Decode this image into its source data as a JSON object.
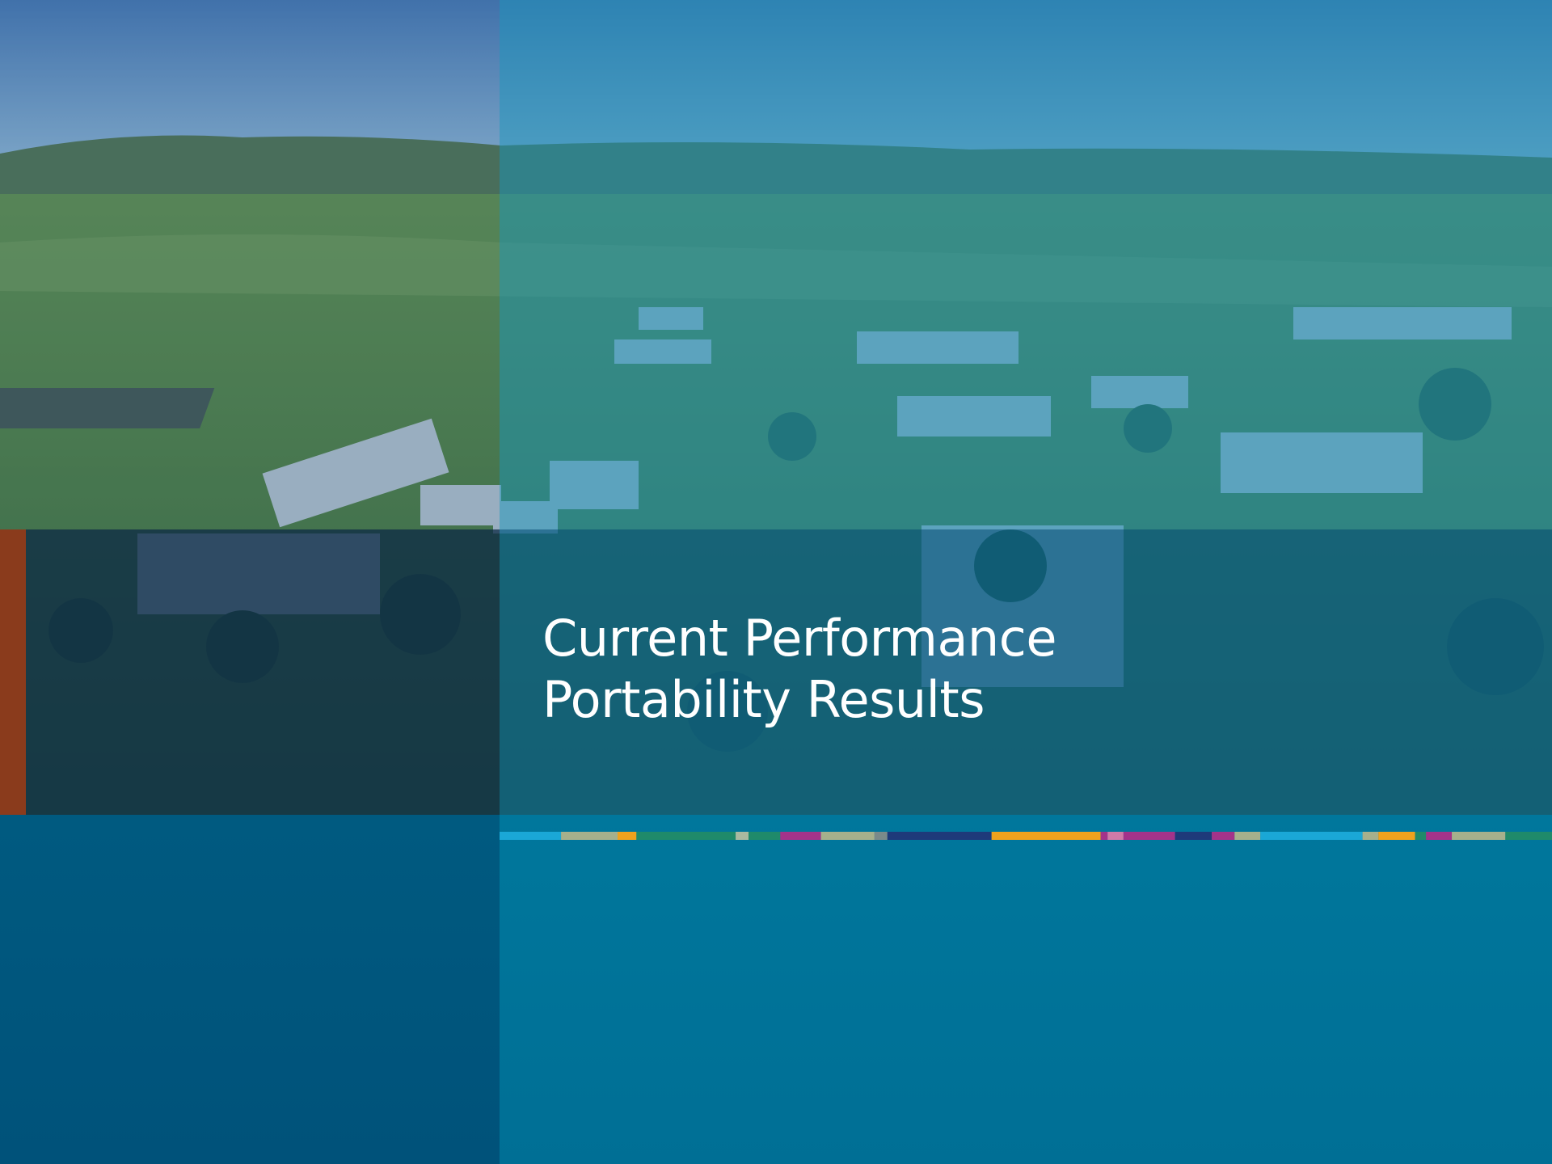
{
  "title": {
    "lines": [
      "Current Performance",
      "Portability Results"
    ]
  }
}
